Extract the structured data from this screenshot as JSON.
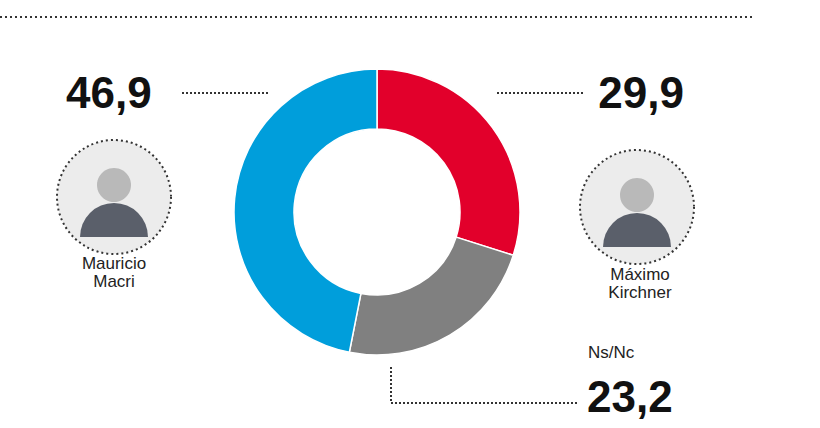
{
  "chart_data": {
    "type": "pie",
    "donut": true,
    "categories": [
      "Máximo Kirchner",
      "Ns/Nc",
      "Mauricio Macri"
    ],
    "values": [
      29.9,
      23.2,
      46.9
    ],
    "value_labels": [
      "29,9",
      "23,2",
      "46,9"
    ],
    "colors": [
      "#e2002b",
      "#808080",
      "#009edb"
    ],
    "data_labels": true
  }
}
